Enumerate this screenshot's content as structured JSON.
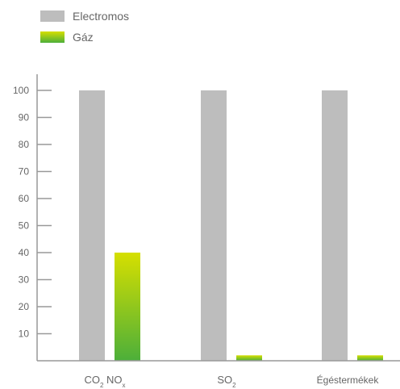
{
  "legend": {
    "items": [
      {
        "label": "Electromos",
        "color": "#bdbdbd"
      },
      {
        "label": "Gáz",
        "color": "#9ccf1a"
      }
    ]
  },
  "chart_data": {
    "type": "bar",
    "categories": [
      {
        "base": "CO",
        "sub": "2",
        "base2": " NO",
        "sub2": "x"
      },
      {
        "base": "SO",
        "sub": "2",
        "base2": "",
        "sub2": ""
      },
      {
        "base": "Égéstermékek",
        "sub": "",
        "base2": "",
        "sub2": ""
      }
    ],
    "series": [
      {
        "name": "Electromos",
        "values": [
          100,
          100,
          100
        ],
        "color": "#bdbdbd"
      },
      {
        "name": "Gáz",
        "values": [
          40,
          2,
          2
        ],
        "color_top": "#d6df00",
        "color_bottom": "#4caf3a"
      }
    ],
    "yticks": [
      10,
      20,
      30,
      40,
      50,
      60,
      70,
      80,
      90,
      100
    ],
    "ylim": [
      0,
      100
    ],
    "xlabel": "",
    "ylabel": "",
    "title": ""
  }
}
